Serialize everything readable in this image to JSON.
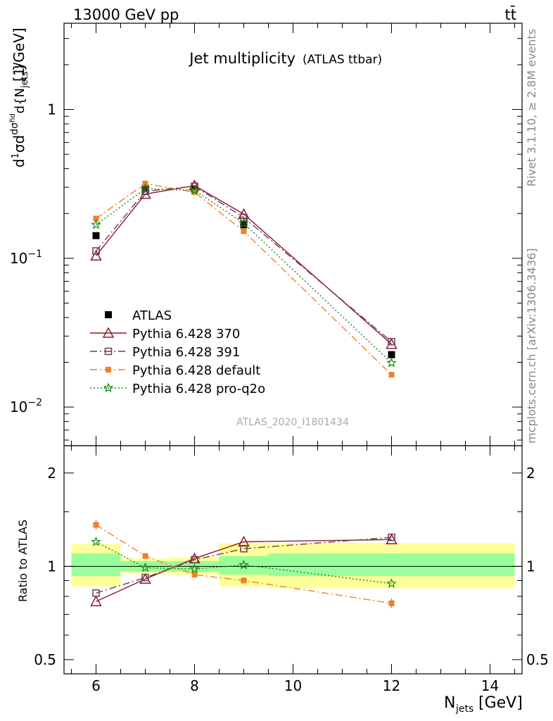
{
  "header": {
    "energy_label": "13000 GeV pp",
    "process_label": "tt̄"
  },
  "side_labels": {
    "rivet": "Rivet 3.1.10, ≥ 2.8M events",
    "mcplots": "mcplots.cern.ch [arXiv:1306.3436]"
  },
  "analysis_id": "ATLAS_2020_I1801434",
  "colors": {
    "data": "#000000",
    "p370": "#8b1a2b",
    "p391": "#6e3d52",
    "pdefault": "#f07f2a",
    "pq2o": "#118811",
    "band_inner": "#99ff99",
    "band_outer": "#ffff99"
  },
  "chart_data": [
    {
      "type": "line",
      "title": "Jet multiplicity",
      "title_suffix": "(ATLAS ttbar)",
      "xlabel": "N",
      "xlabel_sub": "jets",
      "xlabel_unit": "[GeV]",
      "ylabel": "[1/GeV]",
      "yscale": "log",
      "xlim": [
        5.35,
        14.65
      ],
      "ylim": [
        0.0055,
        3.8
      ],
      "x_ticks": [
        6,
        8,
        10,
        12,
        14
      ],
      "y_ticks": [
        {
          "value": 1,
          "base": "1",
          "exp": ""
        },
        {
          "value": 0.1,
          "base": "10",
          "exp": "−1"
        },
        {
          "value": 0.01,
          "base": "10",
          "exp": "−2"
        }
      ],
      "x": [
        6,
        7,
        8,
        9,
        12
      ],
      "legend_position": "center-left",
      "series": [
        {
          "name": "ATLAS",
          "key": "data",
          "values": [
            0.142,
            0.295,
            0.292,
            0.168,
            0.0225
          ]
        },
        {
          "name": "Pythia 6.428 370",
          "key": "p370",
          "values": [
            0.104,
            0.27,
            0.308,
            0.198,
            0.0265
          ]
        },
        {
          "name": "Pythia 6.428 391",
          "key": "p391",
          "values": [
            0.112,
            0.282,
            0.305,
            0.188,
            0.0275
          ]
        },
        {
          "name": "Pythia 6.428 default",
          "key": "pdefault",
          "values": [
            0.185,
            0.318,
            0.278,
            0.152,
            0.0165
          ]
        },
        {
          "name": "Pythia 6.428 pro-q2o",
          "key": "pq2o",
          "values": [
            0.168,
            0.293,
            0.287,
            0.172,
            0.0198
          ]
        }
      ]
    },
    {
      "type": "line",
      "ylabel": "Ratio to ATLAS",
      "yscale": "log",
      "xlim": [
        5.35,
        14.65
      ],
      "ylim": [
        0.45,
        2.45
      ],
      "x_ticks": [
        6,
        8,
        10,
        12,
        14
      ],
      "y_ticks": [
        {
          "value": 2,
          "label": "2"
        },
        {
          "value": 1,
          "label": "1"
        },
        {
          "value": 0.5,
          "label": "0.5"
        }
      ],
      "x": [
        6,
        7,
        8,
        9,
        12
      ],
      "uncertainty_bins": [
        {
          "x_range": [
            5.5,
            6.5
          ],
          "inner": [
            0.93,
            1.1
          ],
          "outer": [
            0.86,
            1.18
          ]
        },
        {
          "x_range": [
            6.5,
            7.5
          ],
          "inner": [
            0.96,
            1.04
          ],
          "outer": [
            0.95,
            1.06
          ]
        },
        {
          "x_range": [
            7.5,
            8.5
          ],
          "inner": [
            0.96,
            1.04
          ],
          "outer": [
            0.94,
            1.07
          ]
        },
        {
          "x_range": [
            8.5,
            9.5
          ],
          "inner": [
            0.94,
            1.08
          ],
          "outer": [
            0.86,
            1.19
          ]
        },
        {
          "x_range": [
            9.5,
            14.5
          ],
          "inner": [
            0.93,
            1.1
          ],
          "outer": [
            0.85,
            1.19
          ]
        }
      ],
      "series": [
        {
          "name": "Pythia 6.428 370",
          "key": "p370",
          "values": [
            0.77,
            0.91,
            1.06,
            1.2,
            1.22
          ]
        },
        {
          "name": "Pythia 6.428 391",
          "key": "p391",
          "values": [
            0.82,
            0.92,
            1.05,
            1.14,
            1.24
          ]
        },
        {
          "name": "Pythia 6.428 default",
          "key": "pdefault",
          "values": [
            1.36,
            1.08,
            0.94,
            0.9,
            0.76
          ]
        },
        {
          "name": "Pythia 6.428 pro-q2o",
          "key": "pq2o",
          "values": [
            1.2,
            0.99,
            0.98,
            1.01,
            0.88
          ]
        }
      ]
    }
  ]
}
